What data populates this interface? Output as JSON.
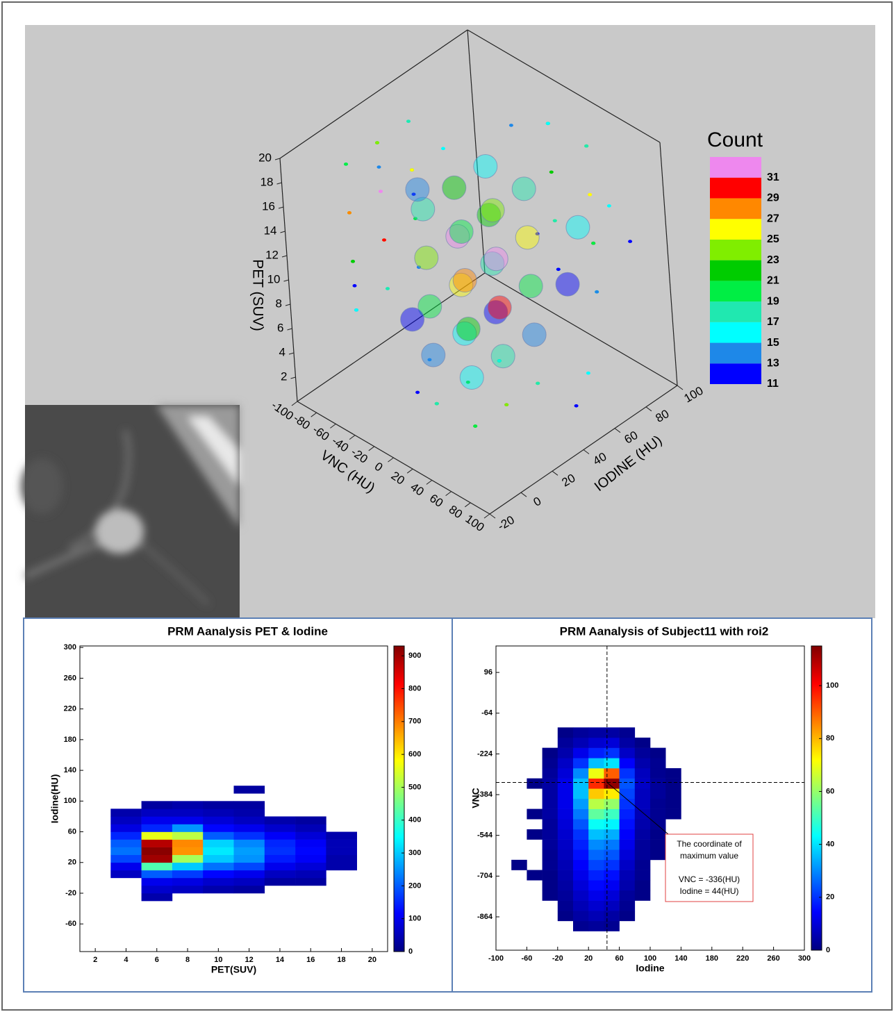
{
  "chart_data": [
    {
      "type": "scatter3d",
      "xlabel": "VNC (HU)",
      "ylabel": "IODINE (HU)",
      "zlabel": "PET (SUV)",
      "xlim": [
        -100,
        100
      ],
      "ylim": [
        -20,
        100
      ],
      "zlim": [
        0,
        20
      ],
      "xticks": [
        -100,
        -80,
        -60,
        -40,
        -20,
        0,
        20,
        40,
        60,
        80,
        100
      ],
      "yticks": [
        -20,
        0,
        20,
        40,
        60,
        80,
        100
      ],
      "zticks": [
        2,
        4,
        6,
        8,
        10,
        12,
        14,
        16,
        18,
        20
      ],
      "x": [
        -20,
        -20,
        -20,
        -20,
        -20,
        -20,
        -20,
        -20,
        -20,
        -20,
        -20,
        -20,
        20,
        20,
        20,
        20,
        20,
        20,
        20,
        20,
        20,
        20,
        20,
        20,
        -60,
        -40,
        60,
        40
      ],
      "y": [
        20,
        20,
        20,
        20,
        40,
        40,
        40,
        40,
        60,
        60,
        60,
        60,
        20,
        20,
        20,
        20,
        40,
        40,
        40,
        40,
        60,
        60,
        60,
        60,
        40,
        20,
        60,
        80
      ],
      "z": [
        4,
        8,
        12,
        16,
        4,
        8,
        12,
        16,
        4,
        8,
        12,
        16,
        4,
        8,
        12,
        16,
        4,
        8,
        12,
        16,
        4,
        8,
        12,
        16,
        14,
        6,
        10,
        12
      ],
      "values": [
        13,
        19,
        23,
        17,
        15,
        25,
        31,
        21,
        11,
        17,
        21,
        15,
        15,
        21,
        27,
        19,
        17,
        29,
        31,
        23,
        13,
        19,
        25,
        17,
        13,
        11,
        11,
        15
      ],
      "colorbar": {
        "title": "Count",
        "ticks": [
          11,
          13,
          15,
          17,
          19,
          21,
          23,
          25,
          27,
          29,
          31
        ],
        "colors": [
          "#0000ff",
          "#1e88e8",
          "#00ffff",
          "#20e8b0",
          "#00ee44",
          "#00cc00",
          "#80ee00",
          "#ffff00",
          "#ff8800",
          "#ff0000",
          "#ee88ee"
        ]
      }
    },
    {
      "type": "heatmap",
      "title": "PRM Aanalysis PET & Iodine",
      "xlabel": "PET(SUV)",
      "ylabel": "Iodine(HU)",
      "xlim": [
        1,
        21
      ],
      "ylim": [
        -96,
        302
      ],
      "xticks": [
        2,
        4,
        6,
        8,
        10,
        12,
        14,
        16,
        18,
        20
      ],
      "yticks": [
        -60,
        -20,
        20,
        60,
        100,
        140,
        180,
        220,
        260,
        300
      ],
      "xbins": [
        3,
        5,
        7,
        9,
        11,
        13,
        15,
        17,
        19
      ],
      "ybins": [
        -30,
        -20,
        -10,
        0,
        10,
        20,
        30,
        40,
        50,
        60,
        70,
        80,
        90,
        100,
        110,
        120
      ],
      "values": [
        [
          null,
          40,
          null,
          null,
          null,
          null,
          null,
          null
        ],
        [
          null,
          70,
          60,
          40,
          30,
          null,
          null,
          null
        ],
        [
          null,
          100,
          90,
          70,
          60,
          30,
          30,
          null
        ],
        [
          60,
          200,
          170,
          120,
          100,
          60,
          50,
          null
        ],
        [
          100,
          420,
          300,
          220,
          180,
          100,
          80,
          40
        ],
        [
          180,
          900,
          500,
          300,
          250,
          140,
          110,
          40
        ],
        [
          220,
          920,
          680,
          330,
          260,
          160,
          120,
          50
        ],
        [
          200,
          880,
          690,
          310,
          240,
          150,
          110,
          50
        ],
        [
          150,
          560,
          520,
          200,
          160,
          110,
          80,
          40
        ],
        [
          90,
          150,
          250,
          120,
          100,
          70,
          50,
          null
        ],
        [
          60,
          100,
          100,
          80,
          60,
          40,
          30,
          null
        ],
        [
          40,
          60,
          60,
          50,
          40,
          null,
          null,
          null
        ],
        [
          null,
          30,
          40,
          30,
          30,
          null,
          null,
          null
        ],
        [
          null,
          null,
          null,
          null,
          null,
          null,
          null,
          null
        ],
        [
          null,
          null,
          null,
          null,
          30,
          null,
          null,
          null
        ]
      ],
      "colorbar": {
        "lim": [
          0,
          930
        ],
        "ticks": [
          0,
          100,
          200,
          300,
          400,
          500,
          600,
          700,
          800,
          900
        ],
        "colormap": "jet"
      }
    },
    {
      "type": "heatmap",
      "title": "PRM Aanalysis of Subject11 with roi2",
      "xlabel": "Iodine",
      "ylabel": "VNC",
      "xlim": [
        -100,
        300
      ],
      "ylim": [
        -995,
        200
      ],
      "xticks": [
        -100,
        -60,
        -20,
        20,
        60,
        100,
        140,
        180,
        220,
        260,
        300
      ],
      "yticks": [
        -864,
        -704,
        -544,
        -384,
        -224,
        -64,
        96
      ],
      "xbins": [
        -80,
        -60,
        -40,
        -20,
        0,
        20,
        40,
        60,
        80,
        100,
        120,
        140
      ],
      "ybins": [
        -920,
        -880,
        -840,
        -800,
        -760,
        -720,
        -680,
        -640,
        -600,
        -560,
        -520,
        -480,
        -440,
        -400,
        -360,
        -320,
        -280,
        -240,
        -200,
        -160,
        -120
      ],
      "values": [
        [
          null,
          null,
          null,
          null,
          2,
          3,
          2,
          null,
          null,
          null,
          null
        ],
        [
          null,
          null,
          null,
          1,
          4,
          6,
          4,
          1,
          null,
          null,
          null
        ],
        [
          null,
          null,
          null,
          2,
          6,
          9,
          7,
          2,
          null,
          null,
          null
        ],
        [
          null,
          null,
          1,
          3,
          8,
          12,
          10,
          3,
          1,
          null,
          null
        ],
        [
          null,
          null,
          1,
          4,
          10,
          15,
          13,
          5,
          1,
          null,
          null
        ],
        [
          null,
          1,
          1,
          5,
          12,
          18,
          16,
          6,
          2,
          null,
          null
        ],
        [
          1,
          null,
          2,
          6,
          14,
          22,
          20,
          8,
          2,
          null,
          null
        ],
        [
          null,
          null,
          2,
          7,
          16,
          26,
          24,
          10,
          3,
          1,
          null
        ],
        [
          null,
          null,
          3,
          8,
          18,
          30,
          28,
          12,
          3,
          1,
          null
        ],
        [
          null,
          1,
          3,
          9,
          20,
          36,
          34,
          14,
          4,
          1,
          null
        ],
        [
          null,
          null,
          3,
          10,
          24,
          44,
          42,
          16,
          5,
          2,
          null
        ],
        [
          null,
          1,
          4,
          11,
          28,
          54,
          50,
          18,
          6,
          2,
          1
        ],
        [
          null,
          null,
          4,
          12,
          32,
          64,
          60,
          20,
          7,
          2,
          1
        ],
        [
          null,
          null,
          4,
          12,
          36,
          78,
          74,
          22,
          7,
          3,
          1
        ],
        [
          null,
          1,
          4,
          12,
          36,
          96,
          113,
          24,
          8,
          3,
          1
        ],
        [
          null,
          null,
          3,
          10,
          30,
          70,
          90,
          20,
          7,
          2,
          1
        ],
        [
          null,
          null,
          2,
          8,
          20,
          36,
          40,
          14,
          5,
          2,
          null
        ],
        [
          null,
          null,
          1,
          5,
          12,
          18,
          20,
          8,
          3,
          1,
          null
        ],
        [
          null,
          null,
          null,
          3,
          6,
          9,
          10,
          4,
          1,
          null,
          null
        ],
        [
          null,
          null,
          null,
          1,
          3,
          4,
          4,
          2,
          null,
          null,
          null
        ]
      ],
      "colorbar": {
        "lim": [
          0,
          115
        ],
        "ticks": [
          0,
          20,
          40,
          60,
          80,
          100
        ],
        "colormap": "jet"
      },
      "annotation": {
        "x": 44,
        "y": -336,
        "text": [
          "The coordinate of",
          "maximum value",
          "VNC = -336(HU)",
          "Iodine = 44(HU)"
        ]
      }
    }
  ]
}
